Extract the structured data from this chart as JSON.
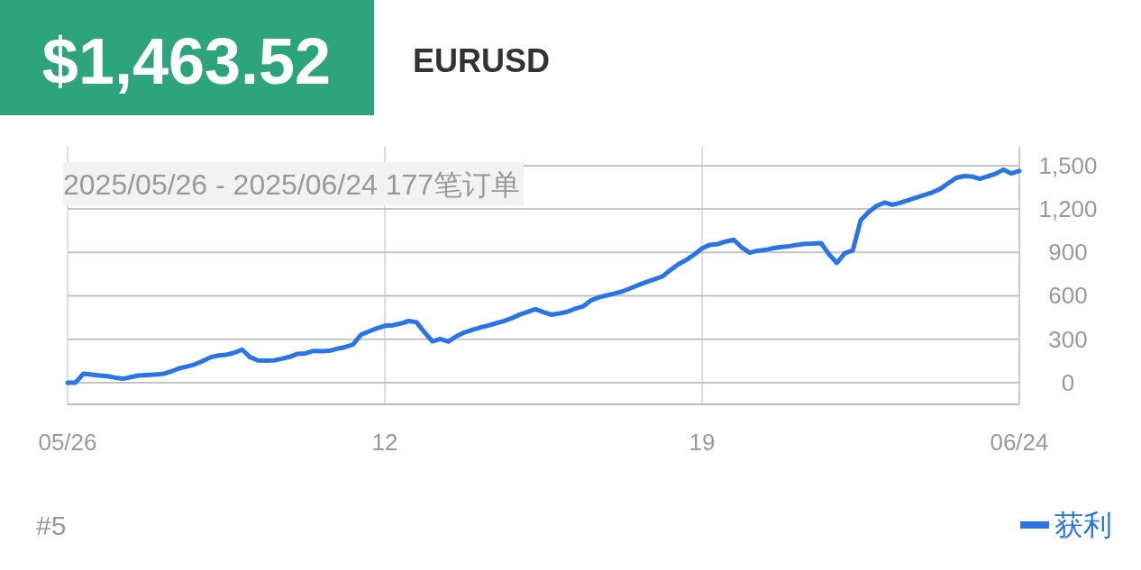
{
  "chart_data": {
    "type": "line",
    "title": "$1,463.52",
    "subtitle": "EURUSD",
    "annotations": [
      "2025/05/26 - 2025/06/24  177笔订单",
      "#5"
    ],
    "categories": [
      "05/26",
      null,
      null,
      null,
      null,
      null,
      null,
      null,
      null,
      null,
      null,
      null,
      null,
      null,
      null,
      null,
      null,
      null,
      null,
      null,
      null,
      null,
      null,
      null,
      null,
      null,
      null,
      null,
      null,
      null,
      null,
      null,
      null,
      null,
      null,
      null,
      null,
      null,
      null,
      null,
      "12",
      null,
      null,
      null,
      null,
      null,
      null,
      null,
      null,
      null,
      null,
      null,
      null,
      null,
      null,
      null,
      null,
      null,
      null,
      null,
      null,
      null,
      null,
      null,
      null,
      null,
      null,
      null,
      null,
      null,
      null,
      null,
      null,
      null,
      null,
      null,
      null,
      null,
      null,
      null,
      "19",
      null,
      null,
      null,
      null,
      null,
      null,
      null,
      null,
      null,
      null,
      null,
      null,
      null,
      null,
      null,
      null,
      null,
      null,
      null,
      null,
      null,
      null,
      null,
      null,
      null,
      null,
      null,
      null,
      null,
      null,
      null,
      null,
      null,
      null,
      null,
      null,
      null,
      null,
      null,
      "06/24"
    ],
    "ylim": [
      -150,
      1630
    ],
    "yticks": [
      {
        "value": 0,
        "label": "0"
      },
      {
        "value": 300,
        "label": "300"
      },
      {
        "value": 600,
        "label": "600"
      },
      {
        "value": 900,
        "label": "900"
      },
      {
        "value": 1200,
        "label": "1,200"
      },
      {
        "value": 1500,
        "label": "1,500"
      }
    ],
    "grid": true,
    "legend": "bottom right",
    "series": [
      {
        "name": "获利",
        "color": "#2a74e6",
        "values": [
          0,
          0,
          62,
          56,
          50,
          45,
          34,
          27,
          38,
          49,
          53,
          56,
          60,
          76,
          98,
          111,
          125,
          148,
          174,
          188,
          193,
          206,
          228,
          176,
          154,
          151,
          154,
          165,
          178,
          199,
          202,
          219,
          218,
          220,
          234,
          245,
          264,
          332,
          354,
          375,
          393,
          396,
          408,
          426,
          417,
          347,
          285,
          302,
          284,
          320,
          346,
          365,
          380,
          394,
          410,
          425,
          445,
          470,
          489,
          508,
          487,
          469,
          478,
          489,
          511,
          527,
          568,
          590,
          603,
          616,
          631,
          653,
          675,
          695,
          714,
          734,
          778,
          818,
          847,
          885,
          928,
          952,
          958,
          975,
          987,
          934,
          898,
          912,
          917,
          930,
          938,
          943,
          952,
          959,
          961,
          964,
          887,
          827,
          895,
          913,
          1122,
          1179,
          1221,
          1244,
          1229,
          1243,
          1261,
          1279,
          1296,
          1314,
          1338,
          1377,
          1414,
          1428,
          1425,
          1408,
          1426,
          1443,
          1472,
          1445,
          1463
        ]
      }
    ]
  }
}
